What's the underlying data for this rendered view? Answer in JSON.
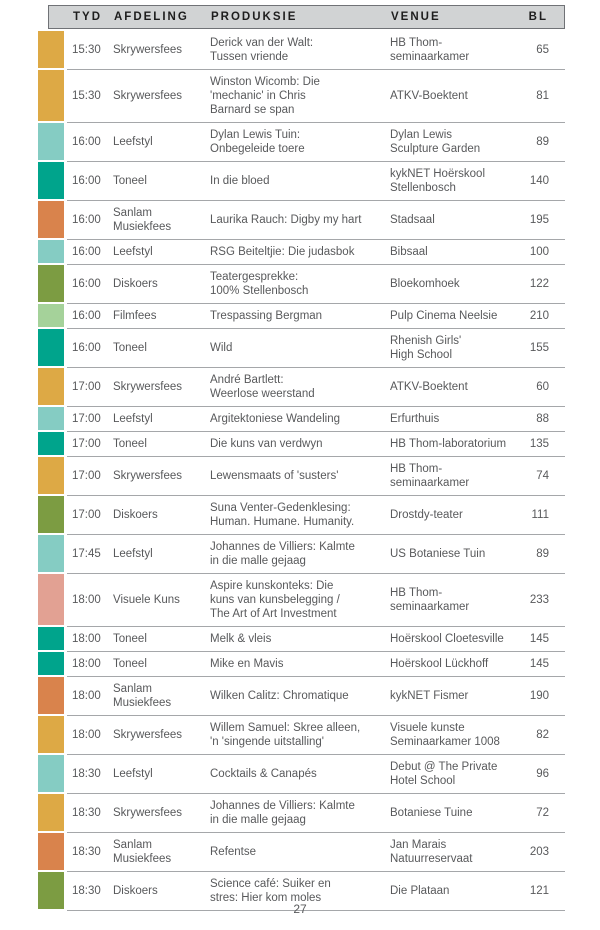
{
  "page": {
    "number": "27"
  },
  "colors": {
    "header_bg": "#D1D3D4",
    "header_border": "#707276",
    "row_divider": "#A5A7AA",
    "body_text": "#58595B",
    "header_text": "#1E1E1E"
  },
  "table": {
    "headers": [
      "TYD",
      "AFDELING",
      "PRODUKSIE",
      "VENUE",
      "BL"
    ],
    "category_colors": {
      "Skrywersfees": "#DDA945",
      "Leefstyl": "#85CCC3",
      "Toneel": "#00A48C",
      "Sanlam Musiekfees": "#D9834C",
      "Diskoers": "#7C9C42",
      "Filmfees": "#A5D29A",
      "Visuele Kuns": "#E2A193"
    },
    "rows": [
      {
        "tyd": "15:30",
        "afdeling": "Skrywersfees",
        "produksie": "Derick van der Walt:\nTussen vriende",
        "venue": "HB Thom-\nseminaarkamer",
        "bl": "65"
      },
      {
        "tyd": "15:30",
        "afdeling": "Skrywersfees",
        "produksie": "Winston Wicomb: Die\n'mechanic' in Chris\nBarnard se span",
        "venue": "ATKV-Boektent",
        "bl": "81"
      },
      {
        "tyd": "16:00",
        "afdeling": "Leefstyl",
        "produksie": "Dylan Lewis Tuin:\nOnbegeleide toere",
        "venue": "Dylan Lewis\nSculpture Garden",
        "bl": "89"
      },
      {
        "tyd": "16:00",
        "afdeling": "Toneel",
        "produksie": "In die bloed",
        "venue": "kykNET Hoërskool\nStellenbosch",
        "bl": "140"
      },
      {
        "tyd": "16:00",
        "afdeling": "Sanlam Musiekfees",
        "produksie": "Laurika Rauch: Digby my hart",
        "venue": "Stadsaal",
        "bl": "195"
      },
      {
        "tyd": "16:00",
        "afdeling": "Leefstyl",
        "produksie": "RSG Beiteltjie: Die judasbok",
        "venue": "Bibsaal",
        "bl": "100"
      },
      {
        "tyd": "16:00",
        "afdeling": "Diskoers",
        "produksie": "Teatergesprekke:\n100% Stellenbosch",
        "venue": "Bloekomhoek",
        "bl": "122"
      },
      {
        "tyd": "16:00",
        "afdeling": "Filmfees",
        "produksie": "Trespassing Bergman",
        "venue": "Pulp Cinema Neelsie",
        "bl": "210"
      },
      {
        "tyd": "16:00",
        "afdeling": "Toneel",
        "produksie": "Wild",
        "venue": "Rhenish Girls'\nHigh School",
        "bl": "155"
      },
      {
        "tyd": "17:00",
        "afdeling": "Skrywersfees",
        "produksie": "André Bartlett:\nWeerlose weerstand",
        "venue": "ATKV-Boektent",
        "bl": "60"
      },
      {
        "tyd": "17:00",
        "afdeling": "Leefstyl",
        "produksie": "Argitektoniese Wandeling",
        "venue": "Erfurthuis",
        "bl": "88"
      },
      {
        "tyd": "17:00",
        "afdeling": "Toneel",
        "produksie": "Die kuns van verdwyn",
        "venue": "HB Thom-laboratorium",
        "bl": "135"
      },
      {
        "tyd": "17:00",
        "afdeling": "Skrywersfees",
        "produksie": "Lewensmaats of 'susters'",
        "venue": "HB Thom-\nseminaarkamer",
        "bl": "74"
      },
      {
        "tyd": "17:00",
        "afdeling": "Diskoers",
        "produksie": "Suna Venter-Gedenklesing:\nHuman. Humane. Humanity.",
        "venue": "Drostdy-teater",
        "bl": "111"
      },
      {
        "tyd": "17:45",
        "afdeling": "Leefstyl",
        "produksie": "Johannes de Villiers: Kalmte\nin die malle gejaag",
        "venue": "US Botaniese Tuin",
        "bl": "89"
      },
      {
        "tyd": "18:00",
        "afdeling": "Visuele Kuns",
        "produksie": "Aspire kunskonteks: Die\nkuns van kunsbelegging /\nThe Art of Art Investment",
        "venue": "HB Thom-\nseminaarkamer",
        "bl": "233"
      },
      {
        "tyd": "18:00",
        "afdeling": "Toneel",
        "produksie": "Melk & vleis",
        "venue": "Hoërskool Cloetesville",
        "bl": "145"
      },
      {
        "tyd": "18:00",
        "afdeling": "Toneel",
        "produksie": "Mike en Mavis",
        "venue": "Hoërskool Lückhoff",
        "bl": "145"
      },
      {
        "tyd": "18:00",
        "afdeling": "Sanlam Musiekfees",
        "produksie": "Wilken Calitz: Chromatique",
        "venue": "kykNET Fismer",
        "bl": "190"
      },
      {
        "tyd": "18:00",
        "afdeling": "Skrywersfees",
        "produksie": "Willem Samuel: Skree alleen,\n'n 'singende uitstalling'",
        "venue": "Visuele kunste\nSeminaarkamer 1008",
        "bl": "82"
      },
      {
        "tyd": "18:30",
        "afdeling": "Leefstyl",
        "produksie": "Cocktails & Canapés",
        "venue": "Debut @ The Private\nHotel School",
        "bl": "96"
      },
      {
        "tyd": "18:30",
        "afdeling": "Skrywersfees",
        "produksie": "Johannes de Villiers: Kalmte\nin die malle gejaag",
        "venue": "Botaniese Tuine",
        "bl": "72"
      },
      {
        "tyd": "18:30",
        "afdeling": "Sanlam Musiekfees",
        "produksie": "Refentse",
        "venue": "Jan Marais\nNatuurreservaat",
        "bl": "203"
      },
      {
        "tyd": "18:30",
        "afdeling": "Diskoers",
        "produksie": "Science café: Suiker en\nstres: Hier kom moles",
        "venue": "Die Plataan",
        "bl": "121"
      }
    ]
  }
}
